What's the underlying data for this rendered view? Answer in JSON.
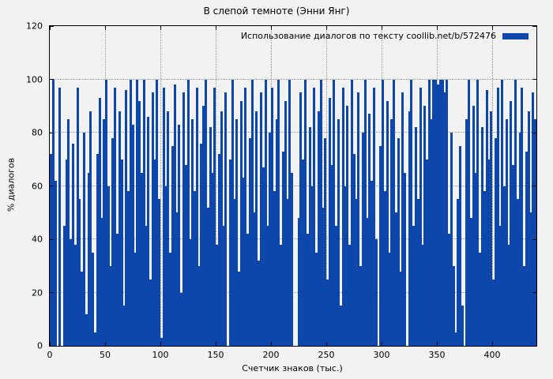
{
  "colors": {
    "bar": "#0d47ac",
    "background": "#f2f2f2",
    "grid": "#9a9a9a",
    "border": "#000000"
  },
  "chart_data": {
    "type": "bar",
    "title": "В слепой темноте (Энни Янг)",
    "xlabel": "Счетчик знаков (тыс.)",
    "ylabel": "% диалогов",
    "legend_label": "Использование диалогов по тексту coollib.net/b/572476",
    "legend_position": "top-right-inside",
    "grid": true,
    "xlim": [
      0,
      440
    ],
    "ylim": [
      0,
      120
    ],
    "x_ticks": [
      0,
      50,
      100,
      150,
      200,
      250,
      300,
      350,
      400
    ],
    "y_ticks": [
      0,
      20,
      40,
      60,
      80,
      100,
      120
    ],
    "x_start": 0,
    "x_step": 2,
    "values": [
      72,
      100,
      62,
      0,
      97,
      0,
      45,
      70,
      85,
      40,
      76,
      38,
      97,
      55,
      28,
      80,
      12,
      65,
      88,
      35,
      5,
      72,
      93,
      48,
      85,
      100,
      60,
      30,
      78,
      97,
      42,
      88,
      70,
      15,
      96,
      58,
      100,
      83,
      35,
      100,
      92,
      65,
      100,
      45,
      86,
      25,
      95,
      70,
      100,
      55,
      3,
      97,
      60,
      88,
      35,
      75,
      98,
      50,
      83,
      20,
      95,
      68,
      100,
      40,
      85,
      58,
      97,
      30,
      76,
      90,
      100,
      52,
      82,
      65,
      97,
      38,
      72,
      88,
      45,
      95,
      0,
      70,
      100,
      55,
      85,
      28,
      92,
      63,
      97,
      42,
      78,
      100,
      50,
      88,
      32,
      95,
      67,
      100,
      45,
      80,
      97,
      58,
      85,
      100,
      38,
      73,
      92,
      55,
      100,
      65,
      0,
      0,
      48,
      95,
      70,
      100,
      42,
      82,
      60,
      97,
      35,
      88,
      100,
      52,
      78,
      25,
      93,
      68,
      100,
      45,
      85,
      15,
      97,
      60,
      90,
      38,
      100,
      72,
      55,
      95,
      30,
      80,
      100,
      48,
      87,
      62,
      97,
      40,
      0,
      75,
      100,
      58,
      92,
      35,
      85,
      100,
      50,
      78,
      28,
      95,
      65,
      0,
      88,
      100,
      45,
      82,
      55,
      97,
      38,
      90,
      70,
      100,
      85,
      100,
      100,
      98,
      100,
      100,
      95,
      100,
      42,
      80,
      30,
      5,
      55,
      75,
      15,
      0,
      85,
      100,
      48,
      90,
      65,
      100,
      35,
      82,
      58,
      96,
      70,
      88,
      25,
      78,
      97,
      45,
      100,
      60,
      85,
      38,
      92,
      68,
      100,
      55,
      80,
      97,
      30,
      73,
      88,
      50,
      95,
      85
    ]
  }
}
